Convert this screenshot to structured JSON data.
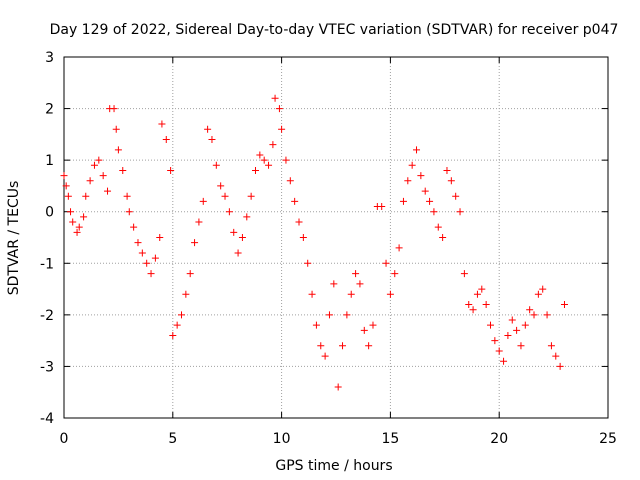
{
  "chart_data": {
    "type": "scatter",
    "title": "Day 129 of 2022, Sidereal Day-to-day VTEC variation (SDTVAR) for receiver p047",
    "xlabel": "GPS time / hours",
    "ylabel": "SDTVAR / TECUs",
    "xlim": [
      0,
      25
    ],
    "ylim": [
      -4,
      3
    ],
    "xticks": [
      0,
      5,
      10,
      15,
      20,
      25
    ],
    "yticks": [
      -4,
      -3,
      -2,
      -1,
      0,
      1,
      2,
      3
    ],
    "grid": true,
    "marker": "+",
    "series": [
      {
        "name": "SDTVAR",
        "color": "#ff0000",
        "x": [
          0.0,
          0.1,
          0.2,
          0.3,
          0.4,
          0.6,
          0.7,
          0.9,
          1.0,
          1.2,
          1.4,
          1.6,
          1.8,
          2.0,
          2.1,
          2.3,
          2.4,
          2.5,
          2.7,
          2.9,
          3.0,
          3.2,
          3.4,
          3.6,
          3.8,
          4.0,
          4.2,
          4.4,
          4.5,
          4.7,
          4.9,
          5.0,
          5.2,
          5.4,
          5.6,
          5.8,
          6.0,
          6.2,
          6.4,
          6.6,
          6.8,
          7.0,
          7.2,
          7.4,
          7.6,
          7.8,
          8.0,
          8.2,
          8.4,
          8.6,
          8.8,
          9.0,
          9.2,
          9.4,
          9.6,
          9.7,
          9.9,
          10.0,
          10.2,
          10.4,
          10.6,
          10.8,
          11.0,
          11.2,
          11.4,
          11.6,
          11.8,
          12.0,
          12.2,
          12.4,
          12.6,
          12.8,
          13.0,
          13.2,
          13.4,
          13.6,
          13.8,
          14.0,
          14.2,
          14.4,
          14.6,
          14.8,
          15.0,
          15.2,
          15.4,
          15.6,
          15.8,
          16.0,
          16.2,
          16.4,
          16.6,
          16.8,
          17.0,
          17.2,
          17.4,
          17.6,
          17.8,
          18.0,
          18.2,
          18.4,
          18.6,
          18.8,
          19.0,
          19.2,
          19.4,
          19.6,
          19.8,
          20.0,
          20.2,
          20.4,
          20.6,
          20.8,
          21.0,
          21.2,
          21.4,
          21.6,
          21.8,
          22.0,
          22.2,
          22.4,
          22.6,
          22.8,
          23.0
        ],
        "y": [
          0.7,
          0.5,
          0.3,
          0.0,
          -0.2,
          -0.4,
          -0.3,
          -0.1,
          0.3,
          0.6,
          0.9,
          1.0,
          0.7,
          0.4,
          2.0,
          2.0,
          1.6,
          1.2,
          0.8,
          0.3,
          0.0,
          -0.3,
          -0.6,
          -0.8,
          -1.0,
          -1.2,
          -0.9,
          -0.5,
          1.7,
          1.4,
          0.8,
          -2.4,
          -2.2,
          -2.0,
          -1.6,
          -1.2,
          -0.6,
          -0.2,
          0.2,
          1.6,
          1.4,
          0.9,
          0.5,
          0.3,
          0.0,
          -0.4,
          -0.8,
          -0.5,
          -0.1,
          0.3,
          0.8,
          1.1,
          1.0,
          0.9,
          1.3,
          2.2,
          2.0,
          1.6,
          1.0,
          0.6,
          0.2,
          -0.2,
          -0.5,
          -1.0,
          -1.6,
          -2.2,
          -2.6,
          -2.8,
          -2.0,
          -1.4,
          -3.4,
          -2.6,
          -2.0,
          -1.6,
          -1.2,
          -1.4,
          -2.3,
          -2.6,
          -2.2,
          0.1,
          0.1,
          -1.0,
          -1.6,
          -1.2,
          -0.7,
          0.2,
          0.6,
          0.9,
          1.2,
          0.7,
          0.4,
          0.2,
          0.0,
          -0.3,
          -0.5,
          0.8,
          0.6,
          0.3,
          0.0,
          -1.2,
          -1.8,
          -1.9,
          -1.6,
          -1.5,
          -1.8,
          -2.2,
          -2.5,
          -2.7,
          -2.9,
          -2.4,
          -2.1,
          -2.3,
          -2.6,
          -2.2,
          -1.9,
          -2.0,
          -1.6,
          -1.5,
          -2.0,
          -2.6,
          -2.8,
          -3.0,
          -1.8
        ]
      }
    ]
  }
}
